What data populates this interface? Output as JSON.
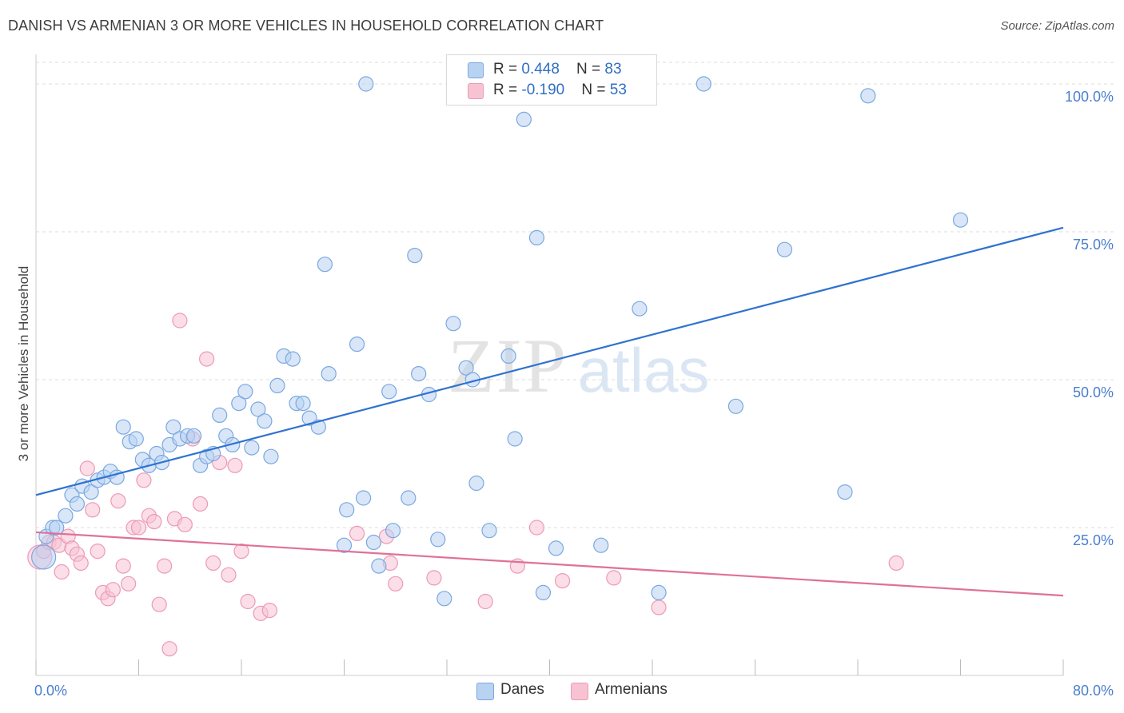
{
  "header": {
    "title": "DANISH VS ARMENIAN 3 OR MORE VEHICLES IN HOUSEHOLD CORRELATION CHART",
    "source": "Source: ZipAtlas.com"
  },
  "watermark": {
    "zip": "ZIP",
    "atlas": "atlas"
  },
  "colors": {
    "danes_fill": "#b8d2f2",
    "danes_stroke": "#7aa8e0",
    "danes_line": "#2f72d0",
    "armenians_fill": "#f7c3d3",
    "armenians_stroke": "#ec9ab5",
    "armenians_line": "#e0709a",
    "tick_label": "#4a7ecf",
    "grid": "#dddddd"
  },
  "legend": {
    "rows": [
      {
        "r_label": "R = ",
        "r_value": "0.448",
        "n_label": "N = ",
        "n_value": "83"
      },
      {
        "r_label": "R = ",
        "r_value": "-0.190",
        "n_label": "N = ",
        "n_value": "53"
      }
    ]
  },
  "bottom_legend": {
    "danes": "Danes",
    "armenians": "Armenians"
  },
  "chart_data": {
    "type": "scatter",
    "title": "DANISH VS ARMENIAN 3 OR MORE VEHICLES IN HOUSEHOLD CORRELATION CHART",
    "xlabel": "",
    "ylabel": "3 or more Vehicles in Household",
    "xlim": [
      0,
      80
    ],
    "ylim": [
      0,
      105
    ],
    "x_ticks": [
      0,
      8,
      16,
      24,
      32,
      40,
      48,
      56,
      64,
      72,
      80
    ],
    "x_tick_labels": [
      {
        "value": 0,
        "label": "0.0%"
      },
      {
        "value": 80,
        "label": "80.0%"
      }
    ],
    "y_ticks": [
      {
        "value": 25,
        "label": "25.0%"
      },
      {
        "value": 50,
        "label": "50.0%"
      },
      {
        "value": 75,
        "label": "75.0%"
      },
      {
        "value": 100,
        "label": "100.0%"
      }
    ],
    "grid": true,
    "legend_position": "top-center",
    "series": [
      {
        "name": "Danes",
        "trend": {
          "x": [
            0,
            80
          ],
          "y": [
            30.5,
            75.7
          ]
        },
        "points": [
          [
            0.6,
            20
          ],
          [
            0.8,
            23.5
          ],
          [
            1.3,
            25
          ],
          [
            1.6,
            25
          ],
          [
            2.3,
            27
          ],
          [
            2.8,
            30.5
          ],
          [
            3.2,
            29
          ],
          [
            3.6,
            32
          ],
          [
            4.3,
            31
          ],
          [
            4.8,
            33
          ],
          [
            5.3,
            33.5
          ],
          [
            5.8,
            34.5
          ],
          [
            6.3,
            33.5
          ],
          [
            6.8,
            42
          ],
          [
            7.3,
            39.5
          ],
          [
            7.8,
            40
          ],
          [
            8.3,
            36.5
          ],
          [
            8.8,
            35.5
          ],
          [
            9.4,
            37.5
          ],
          [
            9.8,
            36
          ],
          [
            10.4,
            39
          ],
          [
            10.7,
            42
          ],
          [
            11.2,
            40
          ],
          [
            11.8,
            40.5
          ],
          [
            12.3,
            40.5
          ],
          [
            12.8,
            35.5
          ],
          [
            13.3,
            37
          ],
          [
            13.8,
            37.5
          ],
          [
            14.3,
            44
          ],
          [
            14.8,
            40.5
          ],
          [
            15.3,
            39
          ],
          [
            15.8,
            46
          ],
          [
            16.3,
            48
          ],
          [
            16.8,
            38.5
          ],
          [
            17.3,
            45
          ],
          [
            17.8,
            43
          ],
          [
            18.3,
            37
          ],
          [
            18.8,
            49
          ],
          [
            19.3,
            54
          ],
          [
            20.0,
            53.5
          ],
          [
            20.3,
            46
          ],
          [
            20.8,
            46
          ],
          [
            21.3,
            43.5
          ],
          [
            22.0,
            42
          ],
          [
            22.5,
            69.5
          ],
          [
            22.8,
            51
          ],
          [
            24.0,
            22
          ],
          [
            24.2,
            28
          ],
          [
            25.0,
            56
          ],
          [
            25.5,
            30
          ],
          [
            25.7,
            100
          ],
          [
            26.3,
            22.5
          ],
          [
            26.7,
            18.5
          ],
          [
            27.5,
            48
          ],
          [
            27.8,
            24.5
          ],
          [
            29.0,
            30
          ],
          [
            29.5,
            71
          ],
          [
            29.8,
            51
          ],
          [
            30.6,
            47.5
          ],
          [
            31.3,
            23
          ],
          [
            31.8,
            13
          ],
          [
            32.5,
            59.5
          ],
          [
            33.5,
            52
          ],
          [
            34.0,
            50
          ],
          [
            34.3,
            32.5
          ],
          [
            35.3,
            24.5
          ],
          [
            36.8,
            54
          ],
          [
            37.3,
            40
          ],
          [
            38.0,
            94
          ],
          [
            39.0,
            74
          ],
          [
            39.5,
            14
          ],
          [
            40.5,
            21.5
          ],
          [
            41.8,
            100
          ],
          [
            43.0,
            100
          ],
          [
            44.0,
            22
          ],
          [
            47.0,
            62
          ],
          [
            48.5,
            14
          ],
          [
            52.0,
            100
          ],
          [
            54.5,
            45.5
          ],
          [
            58.3,
            72
          ],
          [
            63.0,
            31
          ],
          [
            64.8,
            98
          ],
          [
            72.0,
            77
          ]
        ]
      },
      {
        "name": "Armenians",
        "trend": {
          "x": [
            0,
            80
          ],
          "y": [
            24.2,
            13.5
          ]
        },
        "points": [
          [
            0.3,
            20
          ],
          [
            0.6,
            21
          ],
          [
            1.0,
            22.5
          ],
          [
            1.4,
            22.5
          ],
          [
            1.8,
            22
          ],
          [
            2.0,
            17.5
          ],
          [
            2.5,
            23.5
          ],
          [
            2.8,
            21.5
          ],
          [
            3.2,
            20.5
          ],
          [
            3.5,
            19
          ],
          [
            4.0,
            35
          ],
          [
            4.4,
            28
          ],
          [
            4.8,
            21
          ],
          [
            5.2,
            14
          ],
          [
            5.6,
            13
          ],
          [
            6.0,
            14.5
          ],
          [
            6.4,
            29.5
          ],
          [
            6.8,
            18.5
          ],
          [
            7.2,
            15.5
          ],
          [
            7.6,
            25
          ],
          [
            8.0,
            25
          ],
          [
            8.4,
            33
          ],
          [
            8.8,
            27
          ],
          [
            9.2,
            26
          ],
          [
            9.6,
            12
          ],
          [
            10.0,
            18.5
          ],
          [
            10.4,
            4.5
          ],
          [
            10.8,
            26.5
          ],
          [
            11.2,
            60
          ],
          [
            11.6,
            25.5
          ],
          [
            12.2,
            40
          ],
          [
            12.8,
            29
          ],
          [
            13.3,
            53.5
          ],
          [
            13.8,
            19
          ],
          [
            14.3,
            36
          ],
          [
            15.0,
            17
          ],
          [
            15.5,
            35.5
          ],
          [
            16.0,
            21
          ],
          [
            16.5,
            12.5
          ],
          [
            17.5,
            10.5
          ],
          [
            18.2,
            11
          ],
          [
            25.0,
            24
          ],
          [
            27.3,
            23.5
          ],
          [
            27.6,
            19
          ],
          [
            28.0,
            15.5
          ],
          [
            31.0,
            16.5
          ],
          [
            35.0,
            12.5
          ],
          [
            37.5,
            18.5
          ],
          [
            39.0,
            25
          ],
          [
            41.0,
            16
          ],
          [
            45.0,
            16.5
          ],
          [
            48.5,
            11.5
          ],
          [
            67.0,
            19
          ]
        ]
      }
    ]
  }
}
